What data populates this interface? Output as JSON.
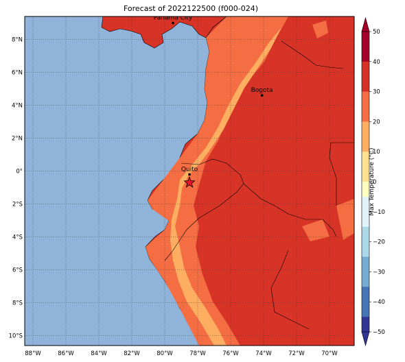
{
  "title": "Forecast of 2022122500 (f000-024)",
  "map": {
    "lon_labels": [
      "88°W",
      "86°W",
      "84°W",
      "82°W",
      "80°W",
      "78°W",
      "76°W",
      "74°W",
      "72°W",
      "70°W"
    ],
    "lon_values": [
      -88,
      -86,
      -84,
      -82,
      -80,
      -78,
      -76,
      -74,
      -72,
      -70
    ],
    "lat_labels": [
      "8°N",
      "6°N",
      "4°N",
      "2°N",
      "0°",
      "2°S",
      "4°S",
      "6°S",
      "8°S",
      "10°S"
    ],
    "lat_values": [
      8,
      6,
      4,
      2,
      0,
      -2,
      -4,
      -6,
      -8,
      -10
    ],
    "extent": {
      "lon": [
        -88.5,
        -68.5
      ],
      "lat": [
        -10.6,
        9.4
      ]
    },
    "cities": [
      {
        "name": "Panama City",
        "lon": -79.5,
        "lat": 9.0
      },
      {
        "name": "Bogota",
        "lon": -74.1,
        "lat": 4.6
      },
      {
        "name": "Quito",
        "lon": -78.5,
        "lat": -0.2
      }
    ],
    "marker": {
      "symbol": "star",
      "lon": -78.5,
      "lat": -0.7,
      "color": "#e8132b"
    },
    "ocean_color": "#8fb3d9",
    "land_bands": {
      "hot": "#d73427",
      "warm": "#f46d43",
      "mild": "#fdae61"
    }
  },
  "colorbar": {
    "label": "Max Temperature (°C)",
    "ticks": [
      "50",
      "40",
      "30",
      "20",
      "10",
      "0",
      "−10",
      "−20",
      "−30",
      "−40",
      "−50"
    ],
    "levels": [
      50,
      45,
      40,
      35,
      30,
      25,
      20,
      15,
      10,
      5,
      0,
      -5,
      -10,
      -15,
      -20,
      -25,
      -30,
      -35,
      -40,
      -45,
      -50
    ],
    "colors": [
      "#a50026",
      "#a50026",
      "#d73027",
      "#d73027",
      "#f46d43",
      "#f46d43",
      "#fdae61",
      "#fdae61",
      "#fee090",
      "#fee090",
      "#ffffbf",
      "#e0f3f8",
      "#e0f3f8",
      "#abd9e9",
      "#abd9e9",
      "#74add1",
      "#74add1",
      "#4575b4",
      "#4575b4",
      "#313695"
    ]
  }
}
